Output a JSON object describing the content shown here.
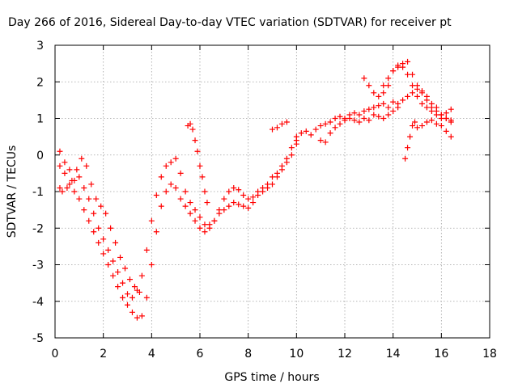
{
  "chart_data": {
    "type": "scatter",
    "title": "Day 266 of 2016, Sidereal Day-to-day VTEC variation (SDTVAR) for receiver pt",
    "xlabel": "GPS time / hours",
    "ylabel": "SDTVAR / TECUs",
    "xlim": [
      0,
      18
    ],
    "ylim": [
      -5,
      3
    ],
    "xticks": [
      "0",
      "2",
      "4",
      "6",
      "8",
      "10",
      "12",
      "14",
      "16",
      "18"
    ],
    "yticks": [
      "3",
      "2",
      "1",
      "0",
      "-1",
      "-2",
      "-3",
      "-4",
      "-5"
    ],
    "grid": true,
    "marker": "plus",
    "color": "#ff0000",
    "series": [
      {
        "x": [
          0.2,
          0.4,
          0.6,
          0.8,
          1.0,
          1.2,
          1.4,
          1.6,
          1.8,
          2.0,
          2.2,
          2.4,
          2.6,
          2.8,
          3.0,
          3.2,
          3.4,
          3.6,
          3.8,
          4.0,
          4.2,
          4.4,
          4.6,
          4.8,
          5.0,
          5.2,
          5.4,
          5.6,
          5.8,
          6.0,
          6.2,
          6.4,
          6.6,
          6.8,
          7.0,
          7.2,
          7.4,
          7.6,
          7.8,
          8.0,
          8.2,
          8.4,
          8.6,
          8.8,
          9.0,
          9.2,
          9.4,
          9.6,
          9.8,
          10.0
        ],
        "y": [
          0.1,
          -0.2,
          -0.4,
          -0.7,
          -0.6,
          -0.9,
          -1.2,
          -1.6,
          -2.0,
          -2.3,
          -2.6,
          -2.9,
          -3.2,
          -3.5,
          -3.8,
          -3.9,
          -3.7,
          -3.3,
          -2.6,
          -1.8,
          -1.1,
          -0.6,
          -0.3,
          -0.2,
          -0.1,
          -0.5,
          -1.0,
          -1.3,
          -1.5,
          -1.7,
          -1.9,
          -1.9,
          -1.8,
          -1.5,
          -1.2,
          -1.0,
          -0.9,
          -0.95,
          -1.1,
          -1.2,
          -1.15,
          -1.0,
          -0.9,
          -0.8,
          -0.6,
          -0.5,
          -0.3,
          -0.1,
          0.2,
          0.4
        ]
      },
      {
        "x": [
          0.2,
          0.4,
          0.6,
          0.8,
          1.0,
          1.2,
          1.4,
          1.6,
          1.8,
          2.0,
          2.2,
          2.4,
          2.6,
          2.8,
          3.0,
          3.2,
          3.4,
          3.6,
          3.8,
          4.0,
          4.2,
          4.4,
          4.6,
          4.8,
          5.0,
          5.2,
          5.4,
          5.6,
          5.8,
          6.0,
          6.2,
          6.4,
          6.6,
          6.8,
          7.0,
          7.2,
          7.4,
          7.6,
          7.8,
          8.0,
          8.2,
          8.4,
          8.6,
          8.8,
          9.0,
          9.2,
          9.4,
          9.6,
          9.8,
          10.0
        ],
        "y": [
          -0.3,
          -0.5,
          -0.8,
          -1.0,
          -1.2,
          -1.5,
          -1.8,
          -2.1,
          -2.4,
          -2.7,
          -3.0,
          -3.3,
          -3.6,
          -3.9,
          -4.1,
          -4.3,
          -4.45,
          -4.4,
          -3.9,
          -3.0,
          -2.1,
          -1.4,
          -1.0,
          -0.8,
          -0.9,
          -1.2,
          -1.4,
          -1.6,
          -1.8,
          -2.0,
          -2.1,
          -2.0,
          -1.8,
          -1.6,
          -1.5,
          -1.4,
          -1.3,
          -1.35,
          -1.4,
          -1.45,
          -1.3,
          -1.1,
          -1.0,
          -0.9,
          -0.8,
          -0.6,
          -0.4,
          -0.2,
          0.0,
          0.3
        ]
      },
      {
        "x": [
          0.2,
          0.3,
          0.5,
          0.7,
          0.9,
          1.1,
          1.3,
          1.5,
          1.7,
          1.9,
          2.1,
          2.3,
          2.5,
          2.7,
          2.9,
          3.1,
          3.3,
          3.5
        ],
        "y": [
          -0.9,
          -1.0,
          -0.9,
          -0.7,
          -0.4,
          -0.1,
          -0.3,
          -0.8,
          -1.2,
          -1.4,
          -1.6,
          -2.0,
          -2.4,
          -2.8,
          -3.1,
          -3.4,
          -3.6,
          -3.75
        ]
      },
      {
        "x": [
          5.5,
          5.6,
          5.7,
          5.8,
          5.9,
          6.0,
          6.1,
          6.2,
          6.3
        ],
        "y": [
          0.8,
          0.85,
          0.7,
          0.4,
          0.1,
          -0.3,
          -0.6,
          -1.0,
          -1.3
        ]
      },
      {
        "x": [
          9.0,
          9.2,
          9.4,
          9.6
        ],
        "y": [
          0.7,
          0.75,
          0.85,
          0.9
        ]
      },
      {
        "x": [
          10.0,
          10.2,
          10.4,
          10.6,
          10.8,
          11.0,
          11.2,
          11.4,
          11.6,
          11.8,
          12.0,
          12.2,
          12.4,
          12.6,
          12.8,
          13.0,
          13.2,
          13.4,
          13.6,
          13.8,
          14.0,
          14.2,
          14.4,
          14.6,
          14.8,
          15.0,
          15.2,
          15.4,
          15.6,
          15.8,
          16.0,
          16.2,
          16.4
        ],
        "y": [
          0.5,
          0.6,
          0.65,
          0.55,
          0.7,
          0.8,
          0.85,
          0.9,
          1.0,
          1.05,
          1.0,
          1.1,
          1.15,
          1.1,
          1.2,
          1.25,
          1.3,
          1.35,
          1.4,
          1.3,
          1.45,
          1.4,
          1.5,
          1.6,
          1.7,
          1.8,
          1.75,
          1.6,
          1.4,
          1.3,
          1.1,
          1.0,
          0.95
        ]
      },
      {
        "x": [
          11.0,
          11.2,
          11.4,
          11.6,
          11.8,
          12.0,
          12.2,
          12.4,
          12.6,
          12.8,
          13.0,
          13.2,
          13.4,
          13.6,
          13.8,
          14.0,
          14.2
        ],
        "y": [
          0.4,
          0.35,
          0.6,
          0.75,
          0.85,
          0.95,
          1.0,
          0.95,
          0.9,
          1.0,
          0.95,
          1.1,
          1.05,
          1.0,
          1.1,
          1.2,
          1.3
        ]
      },
      {
        "x": [
          12.8,
          13.0,
          13.2,
          13.4,
          13.6,
          13.8,
          14.0,
          14.2,
          14.4,
          14.6,
          14.8,
          15.0,
          15.2,
          15.4,
          15.6,
          15.8,
          16.0,
          16.2,
          16.4
        ],
        "y": [
          2.1,
          1.9,
          1.7,
          1.6,
          1.7,
          1.9,
          2.3,
          2.45,
          2.4,
          2.2,
          1.9,
          1.6,
          1.4,
          1.3,
          1.2,
          1.1,
          1.0,
          1.15,
          1.25
        ]
      },
      {
        "x": [
          13.6,
          13.8,
          14.0,
          14.2,
          14.4,
          14.6,
          14.8,
          15.0,
          15.2,
          15.4,
          15.6,
          15.8,
          16.0,
          16.2,
          16.4
        ],
        "y": [
          1.9,
          2.1,
          2.3,
          2.4,
          2.5,
          2.55,
          2.2,
          1.9,
          1.7,
          1.5,
          1.3,
          1.2,
          1.1,
          1.0,
          0.9
        ]
      },
      {
        "x": [
          14.5,
          14.6,
          14.7,
          14.8,
          14.9,
          15.0,
          15.2,
          15.4,
          15.6,
          15.8,
          16.0,
          16.2,
          16.4
        ],
        "y": [
          -0.1,
          0.2,
          0.5,
          0.8,
          0.9,
          0.75,
          0.8,
          0.9,
          0.95,
          0.85,
          0.8,
          0.65,
          0.5
        ]
      }
    ]
  }
}
